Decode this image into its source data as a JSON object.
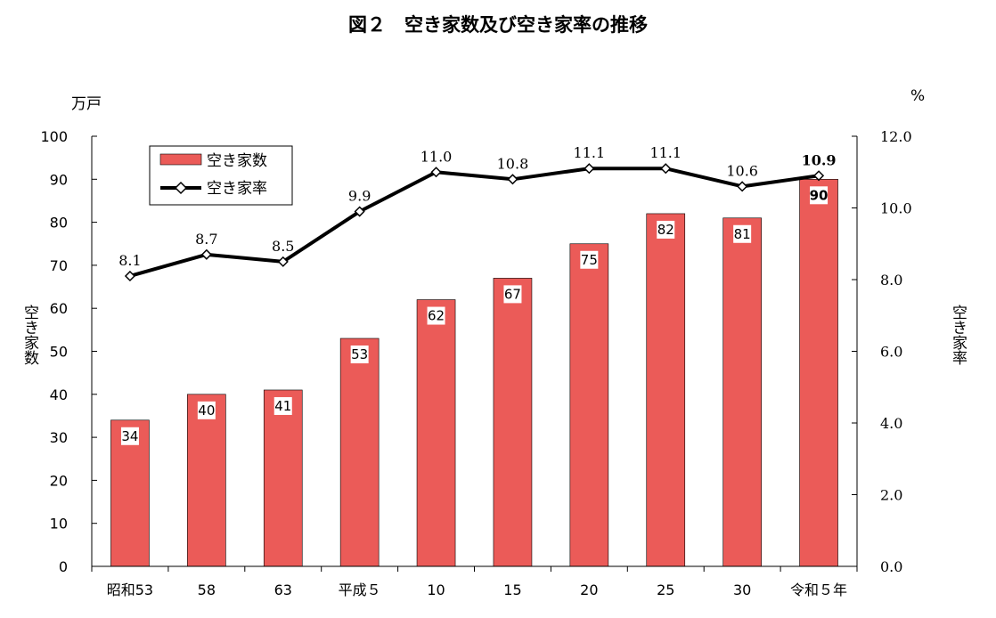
{
  "chart_data": {
    "type": "bar",
    "title": "図２　空き家数及び空き家率の推移",
    "categories": [
      "昭和53",
      "58",
      "63",
      "平成５",
      "10",
      "15",
      "20",
      "25",
      "30",
      "令和５年"
    ],
    "series": [
      {
        "name": "空き家数",
        "type": "bar",
        "axis": "left",
        "color": "#EB5B58",
        "values": [
          34,
          40,
          41,
          53,
          62,
          67,
          75,
          82,
          81,
          90
        ]
      },
      {
        "name": "空き家率",
        "type": "line",
        "axis": "right",
        "color": "#000000",
        "marker": "diamond",
        "values": [
          8.1,
          8.7,
          8.5,
          9.9,
          11.0,
          10.8,
          11.1,
          11.1,
          10.6,
          10.9
        ],
        "labels": [
          "8.1",
          "8.7",
          "8.5",
          "9.9",
          "11.0",
          "10.8",
          "11.1",
          "11.1",
          "10.6",
          "10.9"
        ]
      }
    ],
    "left_axis": {
      "label": "空き家数",
      "unit": "万戸",
      "ylim": [
        0,
        100
      ],
      "ticks": [
        "0",
        "10",
        "20",
        "30",
        "40",
        "50",
        "60",
        "70",
        "80",
        "90",
        "100"
      ]
    },
    "right_axis": {
      "label": "空き家率",
      "unit": "%",
      "ylim": [
        0,
        12
      ],
      "ticks": [
        "0.0",
        "2.0",
        "4.0",
        "6.0",
        "8.0",
        "10.0",
        "12.0"
      ]
    },
    "grid": false,
    "legend": "top-left",
    "emphasized_last_point": true
  }
}
